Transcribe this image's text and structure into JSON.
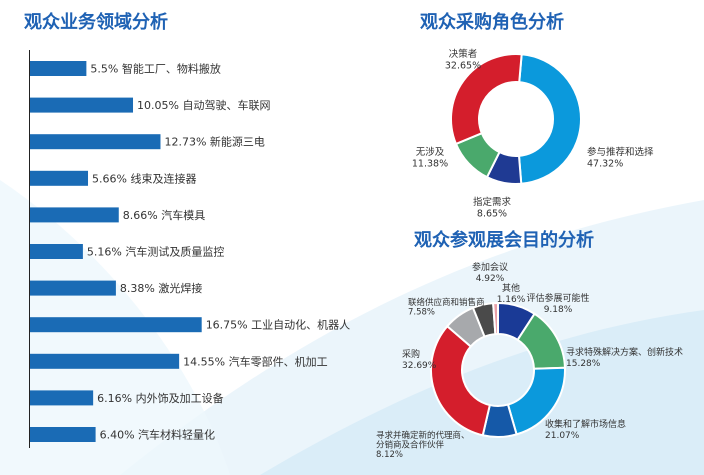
{
  "titles": {
    "business": "观众业务领域分析",
    "role": "观众采购角色分析",
    "purpose": "观众参观展会目的分析"
  },
  "colors": {
    "bar": "#1a6bb5",
    "title": "#1f62b4"
  },
  "chart_data": [
    {
      "type": "bar",
      "orientation": "horizontal",
      "title": "观众业务领域分析",
      "categories": [
        "智能工厂、物料搬放",
        "自动驾驶、车联网",
        "新能源三电",
        "线束及连接器",
        "汽车模具",
        "汽车测试及质量监控",
        "激光焊接",
        "工业自动化、机器人",
        "汽车零部件、机加工",
        "内外饰及加工设备",
        "汽车材料轻量化"
      ],
      "values": [
        5.5,
        10.05,
        12.73,
        5.66,
        8.66,
        5.16,
        8.38,
        16.75,
        14.55,
        6.16,
        6.4
      ],
      "value_labels": [
        "5.5%",
        "10.05%",
        "12.73%",
        "5.66%",
        "8.66%",
        "5.16%",
        "8.38%",
        "16.75%",
        "14.55%",
        "6.16%",
        "6.40%"
      ],
      "unit": "%"
    },
    {
      "type": "pie",
      "variant": "donut",
      "title": "观众采购角色分析",
      "slices": [
        {
          "label": "参与推荐和选择",
          "value": 47.32,
          "value_label": "47.32%",
          "color": "#0b99dc"
        },
        {
          "label": "指定需求",
          "value": 8.65,
          "value_label": "8.65%",
          "color": "#1f3a93"
        },
        {
          "label": "无涉及",
          "value": 11.38,
          "value_label": "11.38%",
          "color": "#4aa96c"
        },
        {
          "label": "决策者",
          "value": 32.65,
          "value_label": "32.65%",
          "color": "#d41e2c"
        }
      ]
    },
    {
      "type": "pie",
      "variant": "donut",
      "title": "观众参观展会目的分析",
      "slices": [
        {
          "label": "评估参展可能性",
          "value": 9.18,
          "value_label": "9.18%",
          "color": "#1a3a96"
        },
        {
          "label": "寻求特殊解决方案、创新技术",
          "value": 15.28,
          "value_label": "15.28%",
          "color": "#4aa96c"
        },
        {
          "label": "收集和了解市场信息",
          "value": 21.07,
          "value_label": "21.07%",
          "color": "#0b99dc"
        },
        {
          "label": "寻求并确定新的代理商、分销商及合作伙伴",
          "value": 8.12,
          "value_label": "8.12%",
          "color": "#1559a8"
        },
        {
          "label": "采购",
          "value": 32.69,
          "value_label": "32.69%",
          "color": "#d41e2c"
        },
        {
          "label": "联络供应商和销售商",
          "value": 7.58,
          "value_label": "7.58%",
          "color": "#a7a9ac"
        },
        {
          "label": "参加会议",
          "value": 4.92,
          "value_label": "4.92%",
          "color": "#4a4a4a"
        },
        {
          "label": "其他",
          "value": 1.16,
          "value_label": "1.16%",
          "color": "#e8a0a8"
        }
      ]
    }
  ]
}
